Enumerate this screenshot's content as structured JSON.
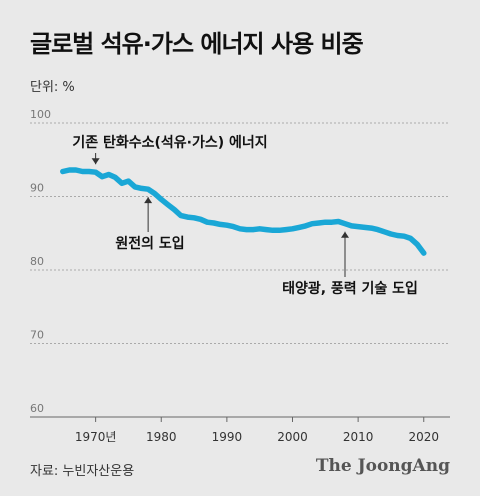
{
  "header": {
    "title": "글로벌 석유·가스 에너지 사용 비중",
    "unit": "단위: %"
  },
  "footer": {
    "source": "자료: 누빈자산운용",
    "brand": "The JoongAng"
  },
  "chart_data": {
    "type": "line",
    "title": "글로벌 석유·가스 에너지 사용 비중",
    "ylim": [
      60,
      100
    ],
    "xlim": [
      1960,
      2024
    ],
    "yticks": [
      60,
      70,
      80,
      90,
      100
    ],
    "xticks": [
      {
        "value": 1970,
        "label": "1970년"
      },
      {
        "value": 1980,
        "label": "1980"
      },
      {
        "value": 1990,
        "label": "1990"
      },
      {
        "value": 2000,
        "label": "2000"
      },
      {
        "value": 2010,
        "label": "2010"
      },
      {
        "value": 2020,
        "label": "2020"
      }
    ],
    "grid": "horizontal-dashed",
    "color": "#1aa7d6",
    "series": [
      {
        "x": [
          1965,
          1966,
          1967,
          1968,
          1969,
          1970,
          1971,
          1972,
          1973,
          1974,
          1975,
          1976,
          1977,
          1978,
          1979,
          1980,
          1981,
          1982,
          1983,
          1984,
          1985,
          1986,
          1987,
          1988,
          1989,
          1990,
          1991,
          1992,
          1993,
          1994,
          1995,
          1996,
          1997,
          1998,
          1999,
          2000,
          2001,
          2002,
          2003,
          2004,
          2005,
          2006,
          2007,
          2008,
          2009,
          2010,
          2011,
          2012,
          2013,
          2014,
          2015,
          2016,
          2017,
          2018,
          2019,
          2020
        ],
        "y": [
          93.4,
          93.6,
          93.6,
          93.4,
          93.4,
          93.3,
          92.7,
          93.0,
          92.6,
          91.8,
          92.1,
          91.3,
          91.1,
          91.0,
          90.4,
          89.6,
          88.9,
          88.2,
          87.4,
          87.2,
          87.1,
          86.9,
          86.5,
          86.4,
          86.2,
          86.1,
          85.9,
          85.6,
          85.5,
          85.5,
          85.6,
          85.5,
          85.4,
          85.4,
          85.5,
          85.6,
          85.8,
          86.0,
          86.3,
          86.4,
          86.5,
          86.5,
          86.6,
          86.3,
          86.0,
          85.9,
          85.8,
          85.7,
          85.5,
          85.2,
          84.9,
          84.7,
          84.6,
          84.3,
          83.5,
          82.3
        ]
      }
    ],
    "annotations": [
      {
        "label": "기존 탄화수소(석유·가스) 에너지",
        "x": 1965
      },
      {
        "label": "원전의 도입",
        "x": 1978
      },
      {
        "label": "태양광, 풍력 기술 도입",
        "x": 2008
      }
    ]
  }
}
